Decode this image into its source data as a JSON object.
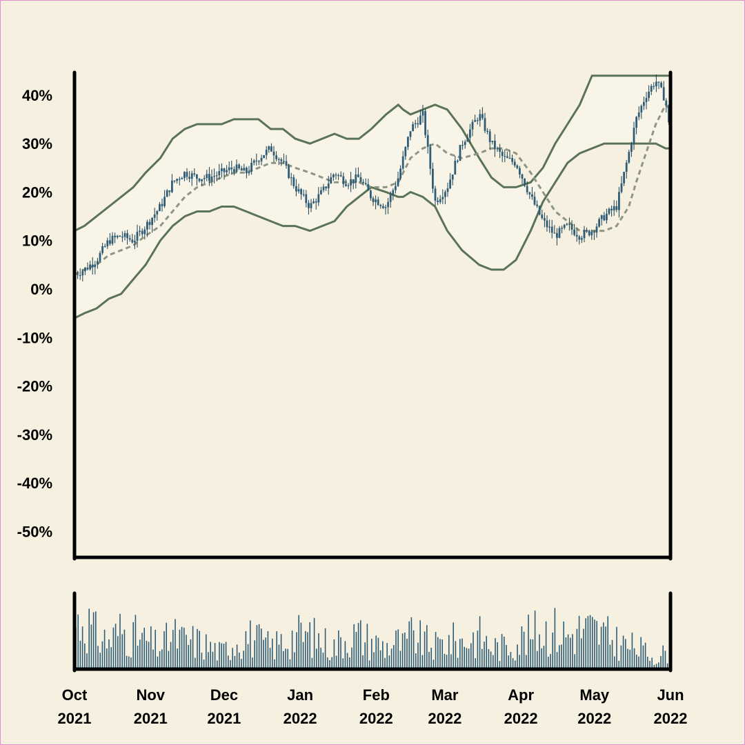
{
  "chart_data": {
    "type": "candlestick",
    "y_tick_labels": [
      "40%",
      "30%",
      "20%",
      "10%",
      "0%",
      "-10%",
      "-20%",
      "-30%",
      "-40%",
      "-50%"
    ],
    "y_ticks": [
      40,
      30,
      20,
      10,
      0,
      -10,
      -20,
      -30,
      -40,
      -50
    ],
    "ylim": [
      -55,
      45
    ],
    "x_tick_labels": [
      {
        "month": "Oct",
        "year": "2021",
        "date": "2021-10-01"
      },
      {
        "month": "Nov",
        "year": "2021",
        "date": "2021-11-01"
      },
      {
        "month": "Dec",
        "year": "2021",
        "date": "2021-12-01"
      },
      {
        "month": "Jan",
        "year": "2022",
        "date": "2022-01-01"
      },
      {
        "month": "Feb",
        "year": "2022",
        "date": "2022-02-01"
      },
      {
        "month": "Mar",
        "year": "2022",
        "date": "2022-03-01"
      },
      {
        "month": "Apr",
        "year": "2022",
        "date": "2022-04-01"
      },
      {
        "month": "May",
        "year": "2022",
        "date": "2022-05-01"
      },
      {
        "month": "Jun",
        "year": "2022",
        "date": "2022-06-01"
      }
    ],
    "xlim": [
      "2021-10-01",
      "2022-06-01"
    ],
    "price_series": {
      "name": "",
      "dates": [
        "2021-10-01",
        "2021-10-05",
        "2021-10-10",
        "2021-10-15",
        "2021-10-20",
        "2021-10-25",
        "2021-10-30",
        "2021-11-05",
        "2021-11-10",
        "2021-11-15",
        "2021-11-20",
        "2021-11-25",
        "2021-11-30",
        "2021-12-05",
        "2021-12-10",
        "2021-12-15",
        "2021-12-20",
        "2021-12-25",
        "2021-12-30",
        "2022-01-05",
        "2022-01-10",
        "2022-01-15",
        "2022-01-20",
        "2022-01-25",
        "2022-01-30",
        "2022-02-05",
        "2022-02-10",
        "2022-02-12",
        "2022-02-15",
        "2022-02-20",
        "2022-02-25",
        "2022-03-02",
        "2022-03-08",
        "2022-03-15",
        "2022-03-20",
        "2022-03-25",
        "2022-03-30",
        "2022-04-05",
        "2022-04-10",
        "2022-04-15",
        "2022-04-20",
        "2022-04-25",
        "2022-04-30",
        "2022-05-05",
        "2022-05-10",
        "2022-05-15",
        "2022-05-18",
        "2022-05-22",
        "2022-05-26",
        "2022-05-30",
        "2022-06-01"
      ],
      "values": [
        3,
        4,
        6,
        10,
        11,
        10,
        13,
        17,
        22,
        24,
        23,
        23,
        24,
        25,
        24,
        27,
        29,
        26,
        21,
        17,
        20,
        24,
        22,
        23,
        19,
        17,
        23,
        27,
        33,
        36,
        18,
        21,
        30,
        36,
        30,
        27,
        26,
        19,
        14,
        11,
        13,
        11,
        12,
        15,
        17,
        28,
        35,
        40,
        43,
        39,
        31
      ]
    },
    "moving_average": {
      "style": "dashed",
      "values": [
        3,
        4,
        5,
        7,
        8,
        9,
        11,
        13,
        16,
        19,
        21,
        22,
        23,
        24,
        24,
        25,
        26,
        26,
        25,
        24,
        23,
        22,
        22,
        22,
        21,
        21,
        22,
        24,
        27,
        29,
        30,
        28,
        27,
        28,
        29,
        29,
        28,
        24,
        20,
        16,
        14,
        12,
        12,
        12,
        13,
        17,
        22,
        28,
        34,
        38,
        37
      ]
    },
    "upper_band": {
      "values": [
        12,
        13,
        15,
        17,
        19,
        21,
        24,
        27,
        31,
        33,
        34,
        34,
        34,
        35,
        35,
        35,
        33,
        33,
        31,
        30,
        31,
        32,
        31,
        31,
        33,
        36,
        38,
        37,
        36,
        37,
        38,
        37,
        33,
        27,
        23,
        21,
        21,
        22,
        25,
        30,
        34,
        38,
        44,
        44,
        44,
        44,
        44,
        44,
        44,
        44,
        44
      ]
    },
    "lower_band": {
      "values": [
        -6,
        -5,
        -4,
        -2,
        -1,
        2,
        5,
        10,
        13,
        15,
        16,
        16,
        17,
        17,
        16,
        15,
        14,
        13,
        13,
        12,
        13,
        14,
        17,
        19,
        21,
        20,
        19,
        19,
        20,
        19,
        17,
        12,
        8,
        5,
        4,
        4,
        6,
        12,
        18,
        22,
        26,
        28,
        29,
        30,
        30,
        30,
        30,
        30,
        30,
        29,
        29
      ]
    },
    "volume": {
      "levels": [
        0.8,
        0.9,
        0.6,
        0.5,
        0.7,
        0.6,
        0.5,
        0.4,
        0.6,
        0.5,
        0.5,
        0.4,
        0.3,
        0.5,
        0.6,
        0.5,
        0.4,
        0.5,
        0.6,
        0.6,
        0.5,
        0.4,
        0.6,
        0.6,
        0.5,
        0.4,
        0.5,
        0.4,
        0.6,
        0.5,
        0.4,
        0.5,
        0.5,
        0.6,
        0.4,
        0.4,
        0.5,
        0.6,
        0.7,
        0.7,
        0.6,
        0.7,
        0.7,
        0.6,
        0.5,
        0.4,
        0.4,
        0.3,
        0.2,
        0.3,
        0.4
      ]
    },
    "grid": false,
    "legend": "none",
    "colors": {
      "candle": "#2f5d77",
      "candle_dark": "#173e52",
      "band": "#5a7356",
      "band_fill": "#f8f5e8",
      "moving_average": "#8d9683",
      "axis": "#000000",
      "background": "#f5f0df",
      "volume": "#2f5d77"
    }
  }
}
